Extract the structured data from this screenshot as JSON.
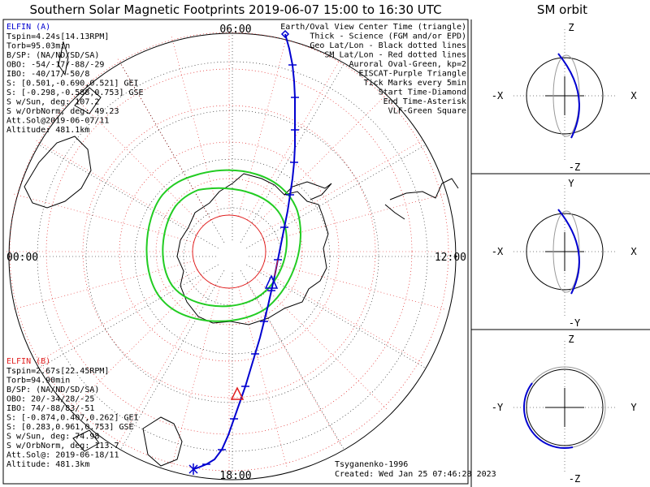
{
  "title": "Southern Solar Magnetic Footprints 2019-06-07 15:00 to 16:30 UTC",
  "sm_title": "SM orbit",
  "polar": {
    "hour_labels": {
      "top": "06:00",
      "bottom": "18:00",
      "left": "00:00",
      "right": "12:00"
    }
  },
  "elfin_a": {
    "name": "ELFIN (A)",
    "lines": [
      "Tspin=4.24s[14.13RPM]",
      "Torb=95.03min",
      "B/SP: (NA/ND/SD/SA)",
      "OBO: -54/-17/-88/-29",
      "IBO: -40/17/-50/8",
      "S: [0.501,-0.690,0.521] GEI",
      "S: [-0.298,-0.588,0.753] GSE",
      "S w/Sun, deg: 107.2",
      "S w/OrbNorm, deg: 49.23",
      "Att.Sol@2019-06-07/11",
      "Altitude: 481.1km"
    ]
  },
  "elfin_b": {
    "name": "ELFIN (B)",
    "lines": [
      "Tspin=2.67s[22.45RPM]",
      "Torb=94.90min",
      "B/SP: (NA/ND/SD/SA)",
      "OBO: 20/-34/28/-25",
      "IBO: 74/-88/83/-51",
      "S: [-0.874,0.407,0.262] GEI",
      "S: [0.283,0.961,0.753] GSE",
      "S w/Sun, deg: 74.98",
      "S w/OrbNorm, deg: 113.7",
      "Att.Sol@: 2019-06-18/11",
      "Altitude: 481.3km"
    ]
  },
  "legend": [
    {
      "text": "Earth/Oval View Center Time (triangle)",
      "color": "#000000"
    },
    {
      "text": "Thick - Science (FGM and/or EPD)",
      "color": "#000000"
    },
    {
      "text": "Geo Lat/Lon - Black dotted lines",
      "color": "#000000"
    },
    {
      "text": "SM Lat/Lon - Red dotted lines",
      "color": "#e02020"
    },
    {
      "text": "Auroral Oval-Green, kp=2",
      "color": "#22cc22"
    },
    {
      "text": "EISCAT-Purple Triangle",
      "color": "#cc33cc"
    },
    {
      "text": "Tick Marks every 5min",
      "color": "#000000"
    },
    {
      "text": "Start Time-Diamond",
      "color": "#000000"
    },
    {
      "text": "End Time-Asterisk",
      "color": "#000000"
    },
    {
      "text": "VLF-Green Square",
      "color": "#22cc22"
    }
  ],
  "footer": {
    "model": "Tsyganenko-1996",
    "created": "Created: Wed Jan 25 07:46:28 2023"
  },
  "sm_panels": [
    {
      "top": "Z",
      "bottom": "-Z",
      "left": "-X",
      "right": "X"
    },
    {
      "top": "Y",
      "bottom": "-Y",
      "left": "-X",
      "right": "X"
    },
    {
      "top": "Z",
      "bottom": "-Z",
      "left": "-Y",
      "right": "Y"
    }
  ],
  "colors": {
    "elfin_a": "#0000d0",
    "elfin_b": "#e02020",
    "oval": "#22cc22",
    "grid_red": "#e02020"
  },
  "chart_data": {
    "type": "polar-footprint",
    "title": "Southern Solar Magnetic Footprints 2019-06-07 15:00 to 16:30 UTC",
    "hour_labels": [
      "06:00",
      "12:00",
      "18:00",
      "00:00"
    ],
    "series": [
      {
        "name": "ELFIN (A)",
        "color": "#0000d0"
      },
      {
        "name": "ELFIN (B)",
        "color": "#e02020"
      }
    ]
  }
}
